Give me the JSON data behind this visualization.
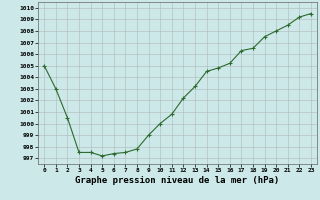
{
  "x": [
    0,
    1,
    2,
    3,
    4,
    5,
    6,
    7,
    8,
    9,
    10,
    11,
    12,
    13,
    14,
    15,
    16,
    17,
    18,
    19,
    20,
    21,
    22,
    23
  ],
  "y": [
    1005.0,
    1003.0,
    1000.5,
    997.5,
    997.5,
    997.2,
    997.4,
    997.5,
    997.8,
    999.0,
    1000.0,
    1000.8,
    1002.2,
    1003.2,
    1004.5,
    1004.8,
    1005.2,
    1006.3,
    1006.5,
    1007.5,
    1008.0,
    1008.5,
    1009.2,
    1009.5
  ],
  "line_color": "#2d6a2d",
  "marker": "+",
  "marker_size": 3,
  "bg_color": "#cce8e8",
  "grid_color": "#b0b8b8",
  "xlabel": "Graphe pression niveau de la mer (hPa)",
  "xlabel_fontsize": 6.5,
  "ylabel_ticks": [
    997,
    998,
    999,
    1000,
    1001,
    1002,
    1003,
    1004,
    1005,
    1006,
    1007,
    1008,
    1009,
    1010
  ],
  "xlim": [
    -0.5,
    23.5
  ],
  "ylim": [
    996.5,
    1010.5
  ],
  "xticks": [
    0,
    1,
    2,
    3,
    4,
    5,
    6,
    7,
    8,
    9,
    10,
    11,
    12,
    13,
    14,
    15,
    16,
    17,
    18,
    19,
    20,
    21,
    22,
    23
  ],
  "tick_fontsize": 4.5,
  "line_width": 0.8,
  "marker_edge_width": 0.8
}
